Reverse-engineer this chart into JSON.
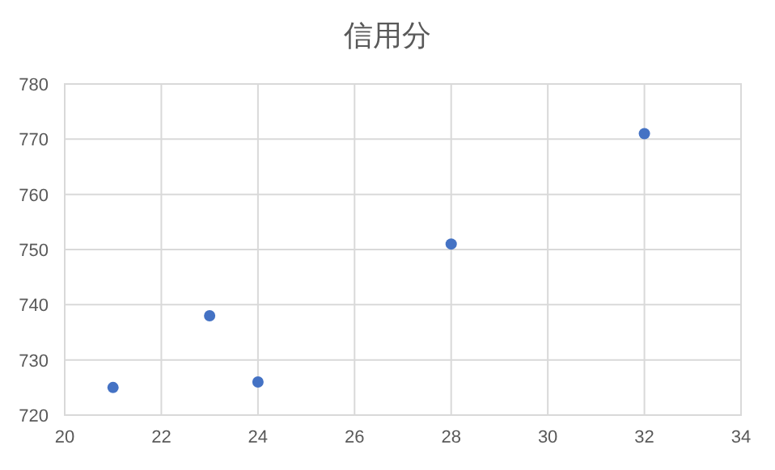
{
  "chart_data": {
    "type": "scatter",
    "title": "信用分",
    "x": [
      21,
      23,
      24,
      28,
      32
    ],
    "series": [
      {
        "color": "#4472c4",
        "values": [
          725,
          738,
          726,
          751,
          771
        ]
      }
    ],
    "xlim": [
      20,
      34
    ],
    "xticks": [
      20,
      22,
      24,
      26,
      28,
      30,
      32,
      34
    ],
    "ylim": [
      720,
      780
    ],
    "yticks": [
      720,
      730,
      740,
      750,
      760,
      770,
      780
    ],
    "grid": true,
    "marker": "circle"
  }
}
